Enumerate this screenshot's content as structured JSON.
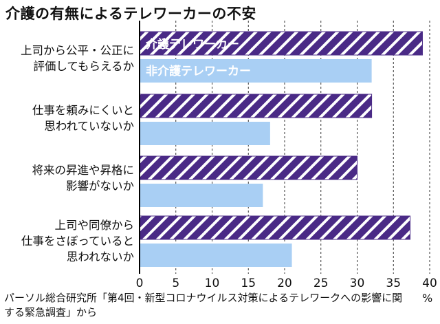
{
  "chart_data": {
    "type": "bar",
    "orientation": "horizontal",
    "title": "介護の有無によるテレワーカーの不安",
    "categories": [
      "上司から公平・公正に\n評価してもらえるか",
      "仕事を頼みにくいと\n思われていないか",
      "将来の昇進や昇格に\n影響がないか",
      "上司や同僚から\n仕事をさぼっていると\n思われないか"
    ],
    "series": [
      {
        "name": "介護テレワーカー",
        "values": [
          39,
          32,
          30,
          37.3
        ],
        "color": "#4a2a86",
        "pattern": "hatched"
      },
      {
        "name": "非介護テレワーカー",
        "values": [
          32,
          18,
          17,
          21
        ],
        "color": "#a9cff4"
      }
    ],
    "xlim": [
      0,
      40
    ],
    "xticks": [
      "0",
      "5",
      "10",
      "15",
      "20",
      "25",
      "30",
      "35",
      "40"
    ],
    "xunit": "%",
    "source": "パーソル総合研究所「第4回・新型コロナウイルス対策によるテレワークへの影響に関する緊急調査」から"
  }
}
